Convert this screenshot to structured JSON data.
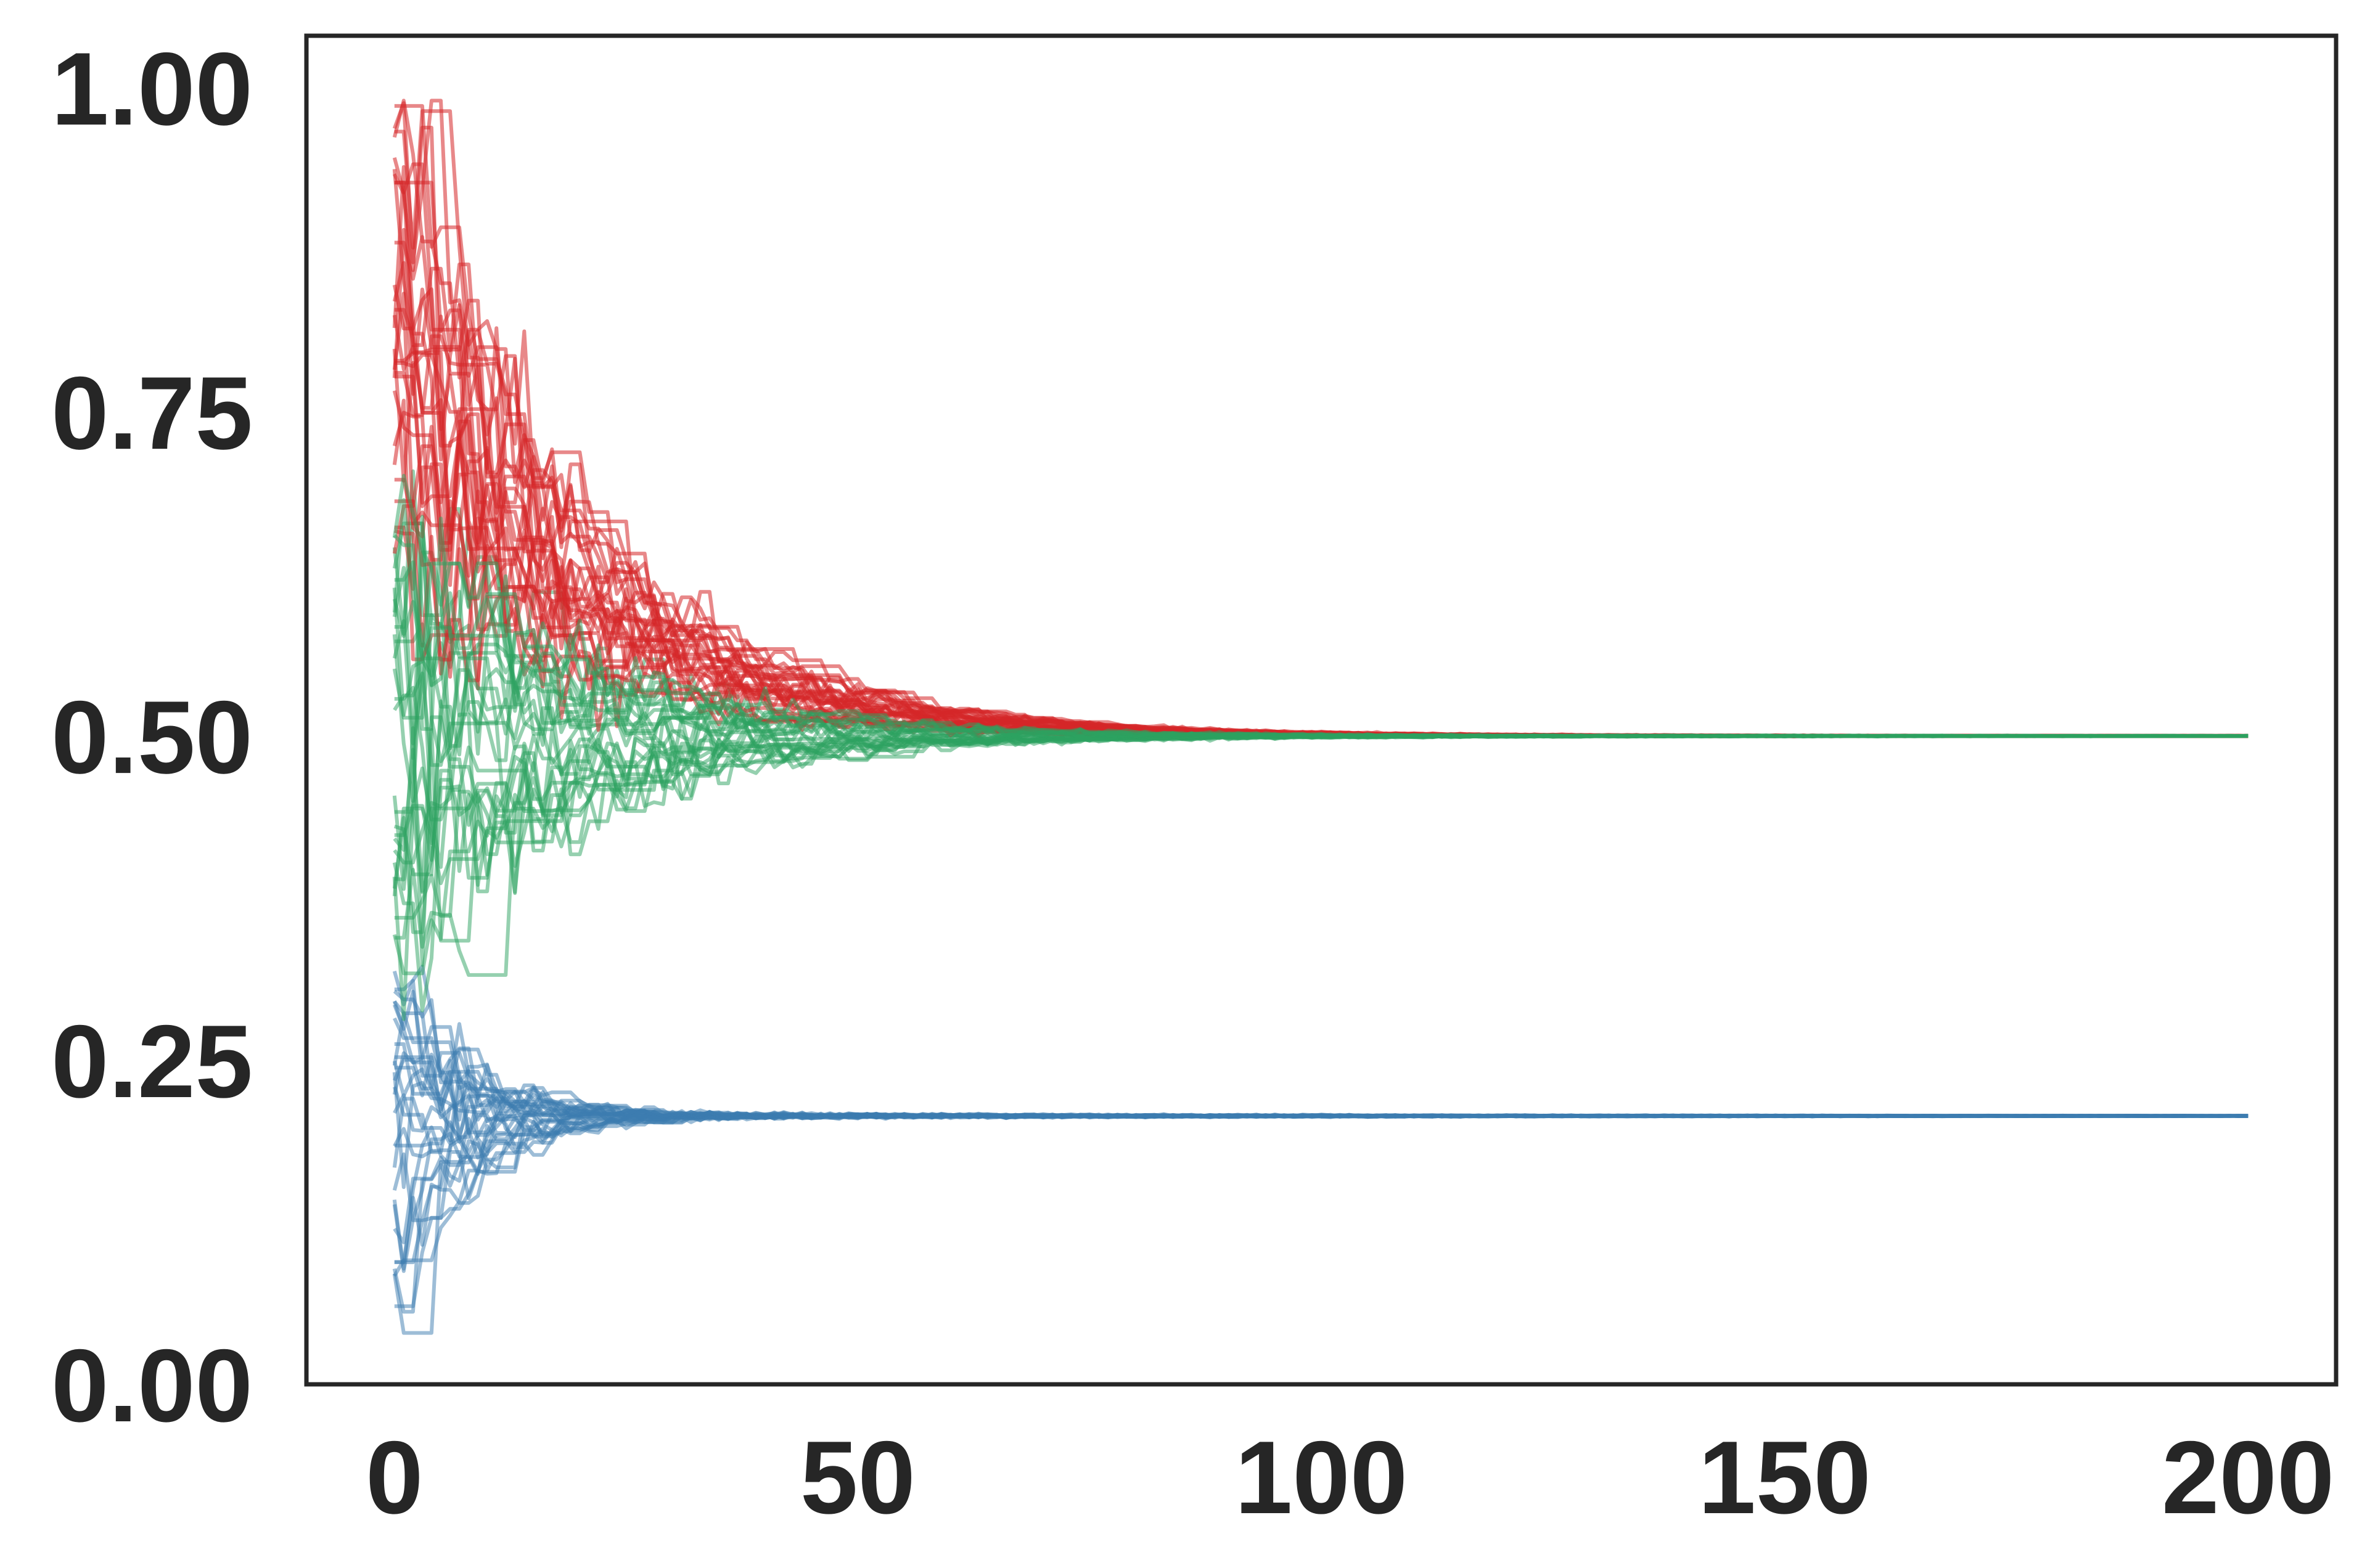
{
  "chart_data": {
    "type": "line",
    "title": "",
    "xlabel": "",
    "ylabel": "",
    "xlim": [
      -9.5,
      209.5
    ],
    "ylim": [
      0.0,
      1.04
    ],
    "grid": false,
    "legend": "none",
    "x_ticks": [
      {
        "value": 0,
        "label": "0"
      },
      {
        "value": 50,
        "label": "50"
      },
      {
        "value": 100,
        "label": "100"
      },
      {
        "value": 150,
        "label": "150"
      },
      {
        "value": 200,
        "label": "200"
      }
    ],
    "y_ticks": [
      {
        "value": 0.0,
        "label": "0.00"
      },
      {
        "value": 0.25,
        "label": "0.25"
      },
      {
        "value": 0.5,
        "label": "0.50"
      },
      {
        "value": 0.75,
        "label": "0.75"
      },
      {
        "value": 1.0,
        "label": "1.00"
      }
    ],
    "groups": [
      {
        "color": "#d62728",
        "runs": 30,
        "x_range": [
          0,
          200
        ],
        "start_range": [
          0.64,
          0.99
        ],
        "converges_to": 0.5,
        "step_to_convergence": 80,
        "opacity": 0.55
      },
      {
        "color": "#2ca25f",
        "runs": 30,
        "x_range": [
          0,
          200
        ],
        "start_range": [
          0.34,
          0.68
        ],
        "converges_to": 0.5,
        "step_to_convergence": 80,
        "opacity": 0.5
      },
      {
        "color": "#3b7bb0",
        "runs": 30,
        "x_range": [
          0,
          200
        ],
        "start_range": [
          0.04,
          0.32
        ],
        "converges_to": 0.207,
        "step_to_convergence": 32,
        "opacity": 0.5
      }
    ]
  }
}
